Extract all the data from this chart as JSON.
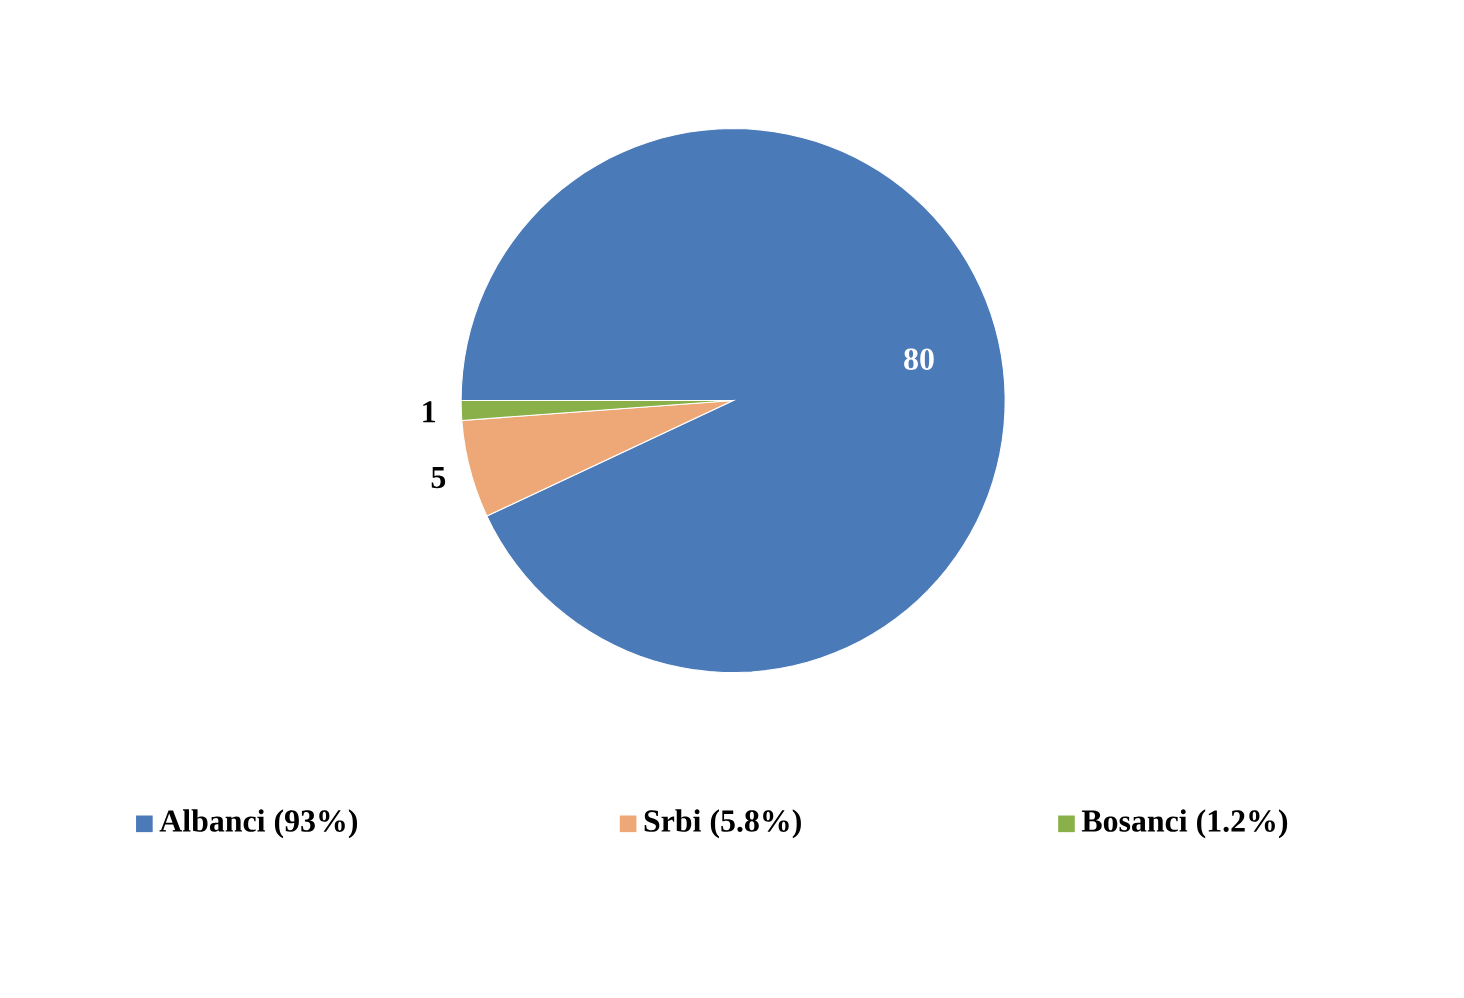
{
  "chart_data": {
    "type": "pie",
    "categories": [
      "Albanci (93%)",
      "Srbi (5.8%)",
      "Bosanci (1.2%)"
    ],
    "values": [
      80,
      5,
      1
    ],
    "colors": [
      "#4a7ab8",
      "#eea878",
      "#8ab04a"
    ],
    "data_labels": true,
    "legend": "bottom"
  }
}
